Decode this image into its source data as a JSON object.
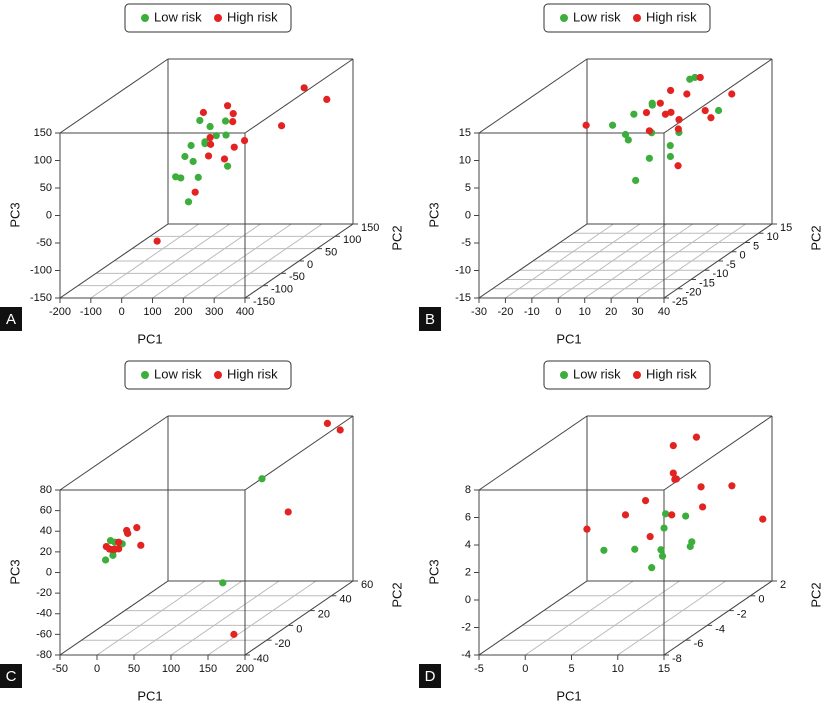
{
  "chart_data": [
    {
      "type": "scatter3d",
      "panel": "A",
      "xlabel": "PC1",
      "ylabel": "PC2",
      "zlabel": "PC3",
      "xlim": [
        -200,
        400
      ],
      "xticks": [
        -200,
        -100,
        0,
        100,
        200,
        300,
        400
      ],
      "ylim": [
        -150,
        150
      ],
      "yticks": [
        -150,
        -100,
        -50,
        0,
        50,
        100,
        150
      ],
      "zlim": [
        -150,
        150
      ],
      "zticks": [
        -150,
        -100,
        -50,
        0,
        50,
        100,
        150
      ],
      "series": [
        {
          "name": "Low risk",
          "color": "#3cae3c",
          "x": [
            50,
            80,
            100,
            120,
            60,
            90,
            140,
            70,
            110,
            30,
            130,
            100,
            85,
            150,
            40
          ],
          "y": [
            0,
            -20,
            10,
            -40,
            30,
            -10,
            20,
            -60,
            50,
            0,
            -30,
            -50,
            40,
            10,
            -20
          ],
          "z": [
            60,
            40,
            90,
            20,
            50,
            110,
            70,
            30,
            0,
            40,
            80,
            -20,
            60,
            100,
            10
          ]
        },
        {
          "name": "High risk",
          "color": "#e32222",
          "x": [
            100,
            130,
            150,
            110,
            170,
            90,
            120,
            200,
            160,
            140,
            300,
            350,
            250,
            180,
            80
          ],
          "y": [
            10,
            -20,
            30,
            50,
            -10,
            0,
            60,
            20,
            -40,
            40,
            100,
            120,
            80,
            -100,
            -120
          ],
          "z": [
            70,
            50,
            90,
            110,
            40,
            120,
            30,
            60,
            80,
            100,
            120,
            90,
            60,
            20,
            -60
          ]
        }
      ]
    },
    {
      "type": "scatter3d",
      "panel": "B",
      "xlabel": "PC1",
      "ylabel": "PC2",
      "zlabel": "PC3",
      "xlim": [
        -30,
        40
      ],
      "xticks": [
        -30,
        -20,
        -10,
        0,
        10,
        20,
        30,
        40
      ],
      "ylim": [
        -25,
        15
      ],
      "yticks": [
        -25,
        -20,
        -15,
        -10,
        -5,
        0,
        5,
        10,
        15
      ],
      "zlim": [
        -15,
        15
      ],
      "zticks": [
        -15,
        -10,
        -5,
        0,
        5,
        10,
        15
      ],
      "series": [
        {
          "name": "Low risk",
          "color": "#3cae3c",
          "x": [
            5,
            10,
            15,
            20,
            0,
            12,
            18,
            25,
            8,
            -5,
            22,
            14,
            16,
            30,
            3
          ],
          "y": [
            -5,
            0,
            5,
            -10,
            3,
            -3,
            8,
            -8,
            2,
            0,
            -5,
            10,
            -12,
            5,
            -2
          ],
          "z": [
            8,
            12,
            5,
            10,
            9,
            3,
            14,
            7,
            11,
            8,
            4,
            13,
            2,
            9,
            6
          ]
        },
        {
          "name": "High risk",
          "color": "#e32222",
          "x": [
            15,
            18,
            12,
            20,
            25,
            10,
            22,
            16,
            28,
            14,
            35,
            -15,
            30,
            19,
            13
          ],
          "y": [
            0,
            5,
            -3,
            8,
            -5,
            3,
            10,
            -8,
            2,
            6,
            5,
            0,
            -10,
            -2,
            4
          ],
          "z": [
            10,
            12,
            8,
            14,
            9,
            11,
            6,
            13,
            10,
            7,
            12,
            8,
            4,
            15,
            9
          ]
        }
      ]
    },
    {
      "type": "scatter3d",
      "panel": "C",
      "xlabel": "PC1",
      "ylabel": "PC2",
      "zlabel": "PC3",
      "xlim": [
        -50,
        200
      ],
      "xticks": [
        -50,
        0,
        50,
        100,
        150,
        200
      ],
      "ylim": [
        -40,
        60
      ],
      "yticks": [
        -40,
        -20,
        0,
        20,
        40,
        60
      ],
      "zlim": [
        -80,
        80
      ],
      "zticks": [
        -80,
        -60,
        -40,
        -20,
        0,
        20,
        40,
        60,
        80
      ],
      "series": [
        {
          "name": "Low risk",
          "color": "#3cae3c",
          "x": [
            -5,
            0,
            5,
            -3,
            2,
            -8,
            4,
            150,
            170
          ],
          "y": [
            -20,
            -25,
            -15,
            -30,
            -18,
            -22,
            -28,
            10,
            -40
          ],
          "z": [
            15,
            10,
            20,
            5,
            12,
            18,
            8,
            55,
            -10
          ]
        },
        {
          "name": "High risk",
          "color": "#e32222",
          "x": [
            0,
            5,
            -5,
            8,
            3,
            -2,
            10,
            -8,
            6,
            30,
            180,
            190,
            200,
            185
          ],
          "y": [
            -20,
            -15,
            -25,
            -18,
            -22,
            -30,
            -10,
            -20,
            -28,
            -20,
            50,
            55,
            0,
            -40
          ],
          "z": [
            15,
            20,
            12,
            25,
            10,
            18,
            22,
            8,
            14,
            12,
            80,
            70,
            30,
            -60
          ]
        }
      ]
    },
    {
      "type": "scatter3d",
      "panel": "D",
      "xlabel": "PC1",
      "ylabel": "PC2",
      "zlabel": "PC3",
      "xlim": [
        -5,
        15
      ],
      "xticks": [
        -5,
        0,
        5,
        10,
        15
      ],
      "ylim": [
        -8,
        2
      ],
      "yticks": [
        -8,
        -6,
        -4,
        -2,
        0,
        2
      ],
      "zlim": [
        -4,
        8
      ],
      "zticks": [
        -4,
        -2,
        0,
        2,
        4,
        6,
        8
      ],
      "series": [
        {
          "name": "Low risk",
          "color": "#3cae3c",
          "x": [
            6,
            8,
            10,
            7,
            9,
            11,
            5,
            8,
            12,
            9
          ],
          "y": [
            -3,
            -2,
            -4,
            -1,
            -3,
            -2,
            -5,
            0,
            -3,
            -4
          ],
          "z": [
            1,
            2,
            1.5,
            2.5,
            0.5,
            1,
            2,
            1.8,
            1.2,
            0.2
          ]
        },
        {
          "name": "High risk",
          "color": "#e32222",
          "x": [
            6,
            8,
            10,
            7,
            9,
            11,
            5,
            12,
            2,
            13,
            8,
            10,
            9,
            14
          ],
          "y": [
            -2,
            -1,
            -3,
            0,
            -2,
            -1,
            -3,
            -2,
            -4,
            0,
            1,
            -5,
            -2,
            2
          ],
          "z": [
            4,
            5,
            3.5,
            4.5,
            6,
            3,
            3.5,
            5,
            3,
            4,
            7,
            3,
            8,
            0.5
          ]
        }
      ]
    }
  ]
}
